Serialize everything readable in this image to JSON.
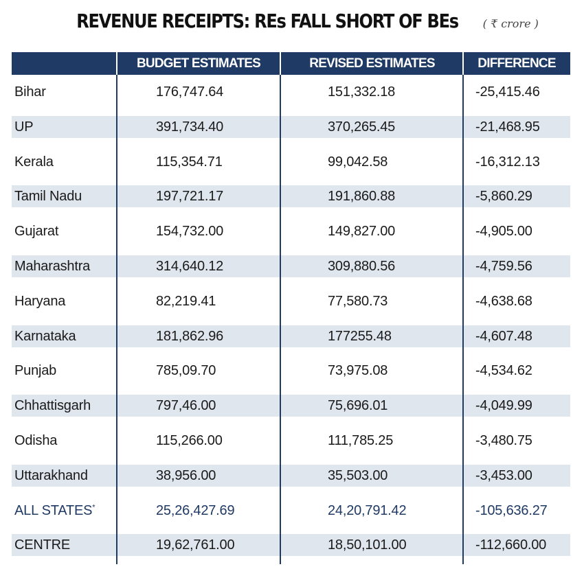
{
  "title": "REVENUE RECEIPTS: REs FALL SHORT OF BEs",
  "unit": "( ₹ crore )",
  "colors": {
    "header_bg": "#1f3a64",
    "header_text": "#ffffff",
    "row_shade": "#dfe6ee",
    "highlight_text": "#1f3a64"
  },
  "chart_data": {
    "type": "table",
    "title": "REVENUE RECEIPTS: REs FALL SHORT OF BEs",
    "unit": "( ₹ crore )",
    "columns": [
      "",
      "BUDGET ESTIMATES",
      "REVISED ESTIMATES",
      "DIFFERENCE"
    ],
    "rows": [
      {
        "state": "Bihar",
        "be": "176,747.64",
        "re": "151,332.18",
        "diff": "-25,415.46"
      },
      {
        "state": "UP",
        "be": "391,734.40",
        "re": "370,265.45",
        "diff": "-21,468.95"
      },
      {
        "state": "Kerala",
        "be": "115,354.71",
        "re": "99,042.58",
        "diff": "-16,312.13"
      },
      {
        "state": "Tamil Nadu",
        "be": "197,721.17",
        "re": "191,860.88",
        "diff": "-5,860.29"
      },
      {
        "state": "Gujarat",
        "be": "154,732.00",
        "re": "149,827.00",
        "diff": "-4,905.00"
      },
      {
        "state": "Maharashtra",
        "be": "314,640.12",
        "re": "309,880.56",
        "diff": "-4,759.56"
      },
      {
        "state": "Haryana",
        "be": "82,219.41",
        "re": "77,580.73",
        "diff": "-4,638.68"
      },
      {
        "state": "Karnataka",
        "be": "181,862.96",
        "re": "177255.48",
        "diff": "-4,607.48"
      },
      {
        "state": "Punjab",
        "be": "785,09.70",
        "re": "73,975.08",
        "diff": "-4,534.62"
      },
      {
        "state": "Chhattisgarh",
        "be": "797,46.00",
        "re": "75,696.01",
        "diff": "-4,049.99"
      },
      {
        "state": "Odisha",
        "be": "115,266.00",
        "re": "111,785.25",
        "diff": "-3,480.75"
      },
      {
        "state": "Uttarakhand",
        "be": "38,956.00",
        "re": "35,503.00",
        "diff": "-3,453.00"
      },
      {
        "state": "ALL STATES",
        "mark": "*",
        "be": "25,26,427.69",
        "re": "24,20,791.42",
        "diff": "-105,636.27",
        "highlight": true
      },
      {
        "state": "CENTRE",
        "be": "19,62,761.00",
        "re": "18,50,101.00",
        "diff": "-112,660.00"
      }
    ]
  }
}
